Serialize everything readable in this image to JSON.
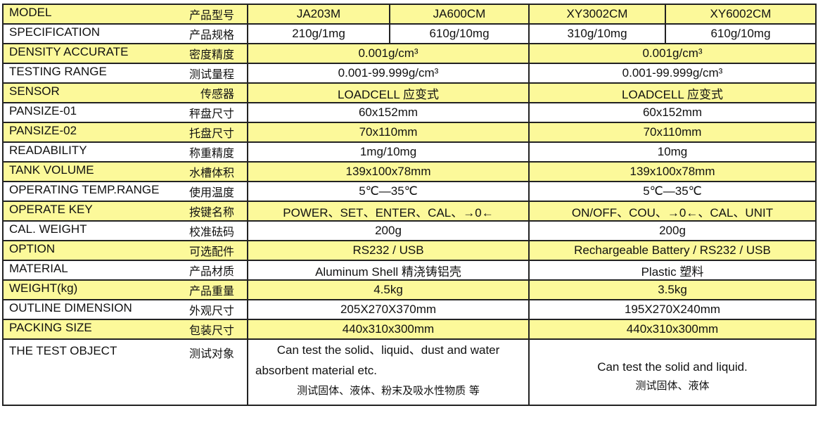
{
  "header": {
    "en": "MODEL",
    "zh": "产品型号",
    "models": [
      "JA203M",
      "JA600CM",
      "XY3002CM",
      "XY6002CM"
    ]
  },
  "spec": {
    "en": "SPECIFICATION",
    "zh": "产品规格",
    "values": [
      "210g/1mg",
      "610g/10mg",
      "310g/10mg",
      "610g/10mg"
    ]
  },
  "rows": [
    {
      "en": "DENSITY ACCURATE",
      "zh": "密度精度",
      "a": "0.001g/cm³",
      "b": "0.001g/cm³"
    },
    {
      "en": "TESTING RANGE",
      "zh": "测试量程",
      "a": "0.001-99.999g/cm³",
      "b": "0.001-99.999g/cm³"
    },
    {
      "en": "SENSOR",
      "zh": "传感器",
      "a": "LOADCELL 应变式",
      "b": "LOADCELL 应变式"
    },
    {
      "en": "PANSIZE-01",
      "zh": "秤盘尺寸",
      "a": "60x152mm",
      "b": "60x152mm"
    },
    {
      "en": "PANSIZE-02",
      "zh": "托盘尺寸",
      "a": "70x110mm",
      "b": "70x110mm"
    },
    {
      "en": "READABILITY",
      "zh": "称重精度",
      "a": "1mg/10mg",
      "b": "10mg"
    },
    {
      "en": "TANK VOLUME",
      "zh": "水槽体积",
      "a": "139x100x78mm",
      "b": "139x100x78mm"
    },
    {
      "en": "OPERATING TEMP.RANGE",
      "zh": "使用温度",
      "a": "5℃—35℃",
      "b": "5℃—35℃"
    },
    {
      "en": "OPERATE KEY",
      "zh": "按键名称",
      "a": "POWER、SET、ENTER、CAL、→0←",
      "b": "ON/OFF、COU、→0←、CAL、UNIT"
    },
    {
      "en": "CAL. WEIGHT",
      "zh": "校准砝码",
      "a": "200g",
      "b": "200g"
    },
    {
      "en": "OPTION",
      "zh": "可选配件",
      "a": "RS232 / USB",
      "b": "Rechargeable Battery / RS232 / USB"
    },
    {
      "en": "MATERIAL",
      "zh": "产品材质",
      "a": "Aluminum Shell 精浇铸铝壳",
      "b": "Plastic 塑料"
    },
    {
      "en": "WEIGHT(kg)",
      "zh": "产品重量",
      "a": "4.5kg",
      "b": "3.5kg"
    },
    {
      "en": "OUTLINE DIMENSION",
      "zh": "外观尺寸",
      "a": "205X270X370mm",
      "b": "195X270X240mm"
    },
    {
      "en": "PACKING SIZE",
      "zh": "包装尺寸",
      "a": "440x310x300mm",
      "b": "440x310x300mm"
    }
  ],
  "last": {
    "en": "THE TEST OBJECT",
    "zh": "测试对象",
    "a1": "Can test the solid、liquid、dust and water",
    "a2": "absorbent material etc.",
    "a3": "测试固体、液体、粉末及吸水性物质 等",
    "b1": "Can test the solid and liquid.",
    "b2": "测试固体、液体"
  },
  "colors": {
    "highlight": "#fcf99a",
    "border": "#222222"
  }
}
